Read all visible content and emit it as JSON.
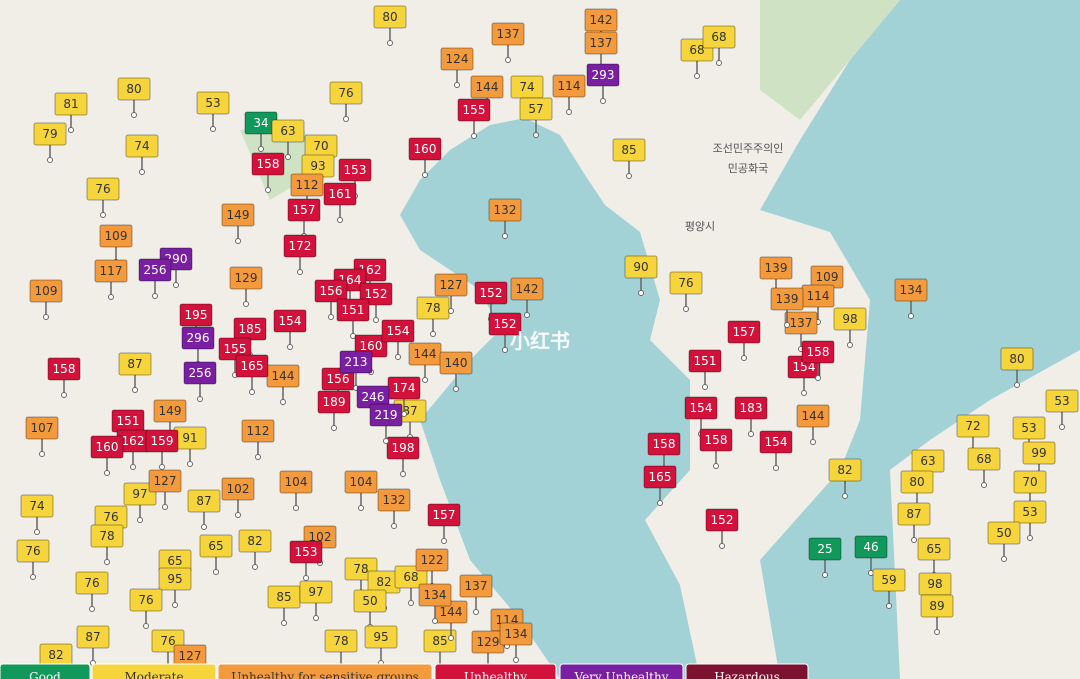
{
  "map": {
    "labels": [
      "조선민주주의인",
      "민공화국",
      "평양시"
    ],
    "watermark": "小红书"
  },
  "legend": [
    {
      "name": "Good",
      "color": "#10995a",
      "stations": [
        34,
        46,
        25
      ]
    },
    {
      "name": "Moderate",
      "color": "#f6d53c",
      "stations": [
        80,
        68,
        68,
        74,
        57,
        81,
        80,
        53,
        76,
        79,
        63,
        74,
        70,
        93,
        85,
        76,
        90,
        76,
        78,
        98,
        87,
        91,
        87,
        80,
        53,
        72,
        53,
        99,
        63,
        68,
        70,
        80,
        97,
        87,
        74,
        76,
        78,
        87,
        53,
        50,
        65,
        65,
        82,
        76,
        65,
        95,
        76,
        78,
        82,
        68,
        85,
        97,
        76,
        50,
        59,
        98,
        89,
        95,
        78,
        85,
        87,
        76,
        82,
        82
      ]
    },
    {
      "name": "Unhealthy for sensitive groups",
      "color": "#f39a3d",
      "stations": [
        137,
        142,
        137,
        124,
        144,
        114,
        112,
        149,
        132,
        109,
        117,
        109,
        129,
        127,
        142,
        139,
        109,
        134,
        114,
        137,
        139,
        144,
        140,
        144,
        149,
        107,
        112,
        144,
        127,
        102,
        104,
        104,
        132,
        102,
        122,
        137,
        144,
        134,
        114,
        129,
        134,
        127
      ]
    },
    {
      "name": "Unhealthy",
      "color": "#d3123c",
      "stations": [
        155,
        158,
        153,
        160,
        161,
        157,
        172,
        162,
        164,
        156,
        152,
        152,
        151,
        154,
        185,
        152,
        160,
        154,
        157,
        155,
        158,
        165,
        156,
        151,
        154,
        158,
        174,
        189,
        151,
        162,
        159,
        160,
        198,
        154,
        183,
        158,
        154,
        158,
        165,
        152,
        157,
        153,
        195
      ]
    },
    {
      "name": "Very Unhealthy",
      "color": "#7a1fa2",
      "stations": [
        293,
        290,
        256,
        296,
        213,
        256,
        246,
        219
      ]
    },
    {
      "name": "Hazardous",
      "color": "#7d1230",
      "stations": []
    }
  ]
}
